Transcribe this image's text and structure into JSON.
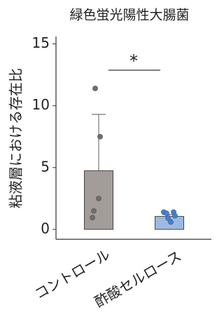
{
  "chart_data": {
    "type": "bar",
    "title": "緑色蛍光陽性大腸菌",
    "y_label": "粘液層における存在比",
    "categories": [
      "コントロール",
      "酢酸セルロース"
    ],
    "values": [
      4.75,
      1.05
    ],
    "errors": [
      4.55,
      0.15
    ],
    "colors": [
      "#a39d99",
      "#9db9e0"
    ],
    "point_colors": [
      "#6e6e6e",
      "#4a80c4"
    ],
    "points": [
      [
        11.4,
        7.5,
        2.5,
        1.5,
        0.95
      ],
      [
        1.4,
        1.4,
        1.3,
        1.1,
        0.9,
        0.6
      ]
    ],
    "annotation": "*",
    "ylim": [
      -0.8,
      15.6
    ],
    "yticks": [
      0,
      5,
      10,
      15
    ]
  }
}
